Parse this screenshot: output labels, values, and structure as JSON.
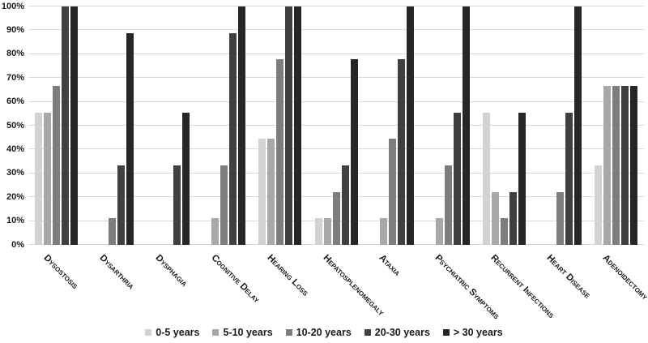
{
  "chart_data": {
    "type": "bar",
    "title": "",
    "xlabel": "",
    "ylabel": "",
    "ylim": [
      0,
      100
    ],
    "y_ticks": [
      "0%",
      "10%",
      "20%",
      "30%",
      "40%",
      "50%",
      "60%",
      "70%",
      "80%",
      "90%",
      "100%"
    ],
    "grid": "horizontal",
    "gridline_color": "#d9d9d9",
    "text_color": "#1a1a1a",
    "background": "#ffffff",
    "legend_position": "bottom",
    "categories": [
      "Dysostosis",
      "Dysarthria",
      "Dysphagia",
      "Cognitive Delay",
      "Hearing Loss",
      "Hepatosplenomegaly",
      "Ataxia",
      "Psychiatric Symptoms",
      "Recurrent Infections",
      "Heart Disease",
      "Adenoidectomy"
    ],
    "series": [
      {
        "name": "0-5 years",
        "color": "#d2d2d2",
        "values": [
          55.6,
          0,
          0,
          0,
          44.4,
          11.1,
          0,
          0,
          55.6,
          0,
          33.3
        ]
      },
      {
        "name": "5-10 years",
        "color": "#a8a8a8",
        "values": [
          55.6,
          0,
          0,
          11.1,
          44.4,
          11.1,
          11.1,
          11.1,
          22.2,
          0,
          66.7
        ]
      },
      {
        "name": "10-20 years",
        "color": "#7d7d7d",
        "values": [
          66.7,
          11.1,
          0,
          33.3,
          77.8,
          22.2,
          44.4,
          33.3,
          11.1,
          22.2,
          66.7
        ]
      },
      {
        "name": "20-30 years",
        "color": "#404040",
        "values": [
          100,
          33.3,
          33.3,
          88.9,
          100,
          33.3,
          77.8,
          55.6,
          22.2,
          55.6,
          66.7
        ]
      },
      {
        "name": "> 30 years",
        "color": "#262626",
        "values": [
          100,
          88.9,
          55.6,
          100,
          100,
          77.8,
          100,
          100,
          55.6,
          100,
          66.7
        ]
      }
    ]
  }
}
